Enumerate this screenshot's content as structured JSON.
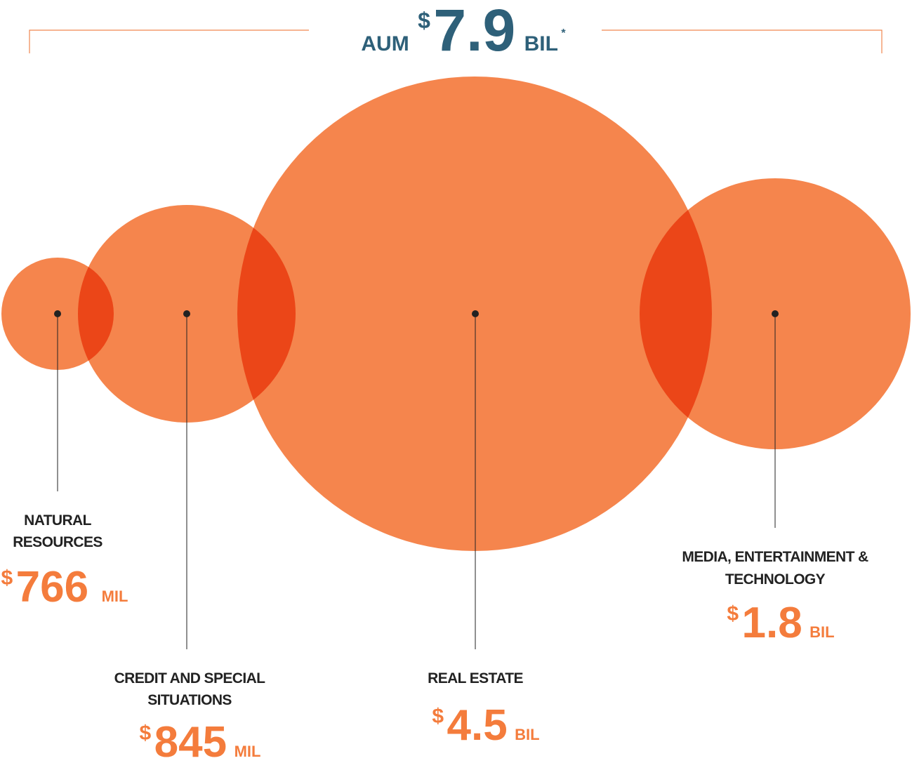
{
  "header": {
    "prefix": "AUM",
    "currency": "$",
    "amount": "7.9",
    "unit": "BIL",
    "footnote_mark": "*"
  },
  "segments": [
    {
      "label_lines": [
        "NATURAL",
        "RESOURCES"
      ],
      "currency": "$",
      "amount": "766",
      "unit": "MIL"
    },
    {
      "label_lines": [
        "CREDIT AND SPECIAL",
        "SITUATIONS"
      ],
      "currency": "$",
      "amount": "845",
      "unit": "MIL"
    },
    {
      "label_lines": [
        "REAL ESTATE"
      ],
      "currency": "$",
      "amount": "4.5",
      "unit": "BIL"
    },
    {
      "label_lines": [
        "MEDIA, ENTERTAINMENT &",
        "TECHNOLOGY"
      ],
      "currency": "$",
      "amount": "1.8",
      "unit": "BIL"
    }
  ]
}
